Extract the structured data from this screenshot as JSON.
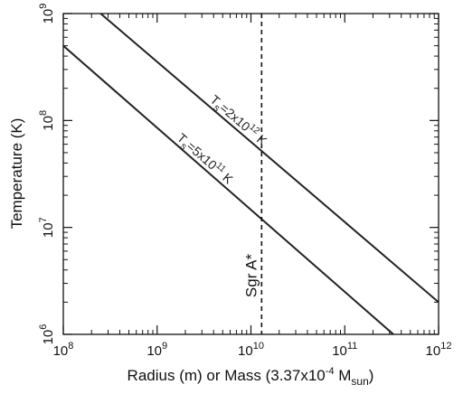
{
  "chart_data": {
    "type": "line",
    "title": "",
    "xlabel": "Radius (m) or Mass (3.37x10",
    "xlabel_sup": "-4",
    "xlabel_mid": " M",
    "xlabel_sub": "sun",
    "xlabel_end": ")",
    "ylabel": "Temperature (K)",
    "xscale": "log",
    "yscale": "log",
    "xlim": [
      100000000.0,
      1000000000000.0
    ],
    "ylim": [
      1000000.0,
      1000000000.0
    ],
    "xticks": [
      {
        "value": 100000000.0,
        "base": "10",
        "exp": "8"
      },
      {
        "value": 1000000000.0,
        "base": "10",
        "exp": "9"
      },
      {
        "value": 10000000000.0,
        "base": "10",
        "exp": "10"
      },
      {
        "value": 100000000000.0,
        "base": "10",
        "exp": "11"
      },
      {
        "value": 1000000000000.0,
        "base": "10",
        "exp": "12"
      }
    ],
    "yticks": [
      {
        "value": 1000000.0,
        "base": "10",
        "exp": "6"
      },
      {
        "value": 10000000.0,
        "base": "10",
        "exp": "7"
      },
      {
        "value": 100000000.0,
        "base": "10",
        "exp": "8"
      },
      {
        "value": 1000000000.0,
        "base": "10",
        "exp": "9"
      }
    ],
    "grid": false,
    "series": [
      {
        "label_T": "T",
        "label_sub": "s",
        "label_mid": "=2x10",
        "label_sup": "12",
        "label_end": " K",
        "label_at_x": 3600000000.0,
        "points": [
          [
            250000000.0,
            1000000000.0
          ],
          [
            1000000000000.0,
            2000000.0
          ]
        ]
      },
      {
        "label_T": "T",
        "label_sub": "s",
        "label_mid": "=5x10",
        "label_sup": "11",
        "label_end": " K",
        "label_at_x": 1600000000.0,
        "points": [
          [
            100000000.0,
            500000000.0
          ],
          [
            330000000000.0,
            1000000.0
          ]
        ]
      }
    ],
    "vline": {
      "x": 13000000000.0,
      "style": "dashed",
      "label": "Sgr A*"
    }
  }
}
